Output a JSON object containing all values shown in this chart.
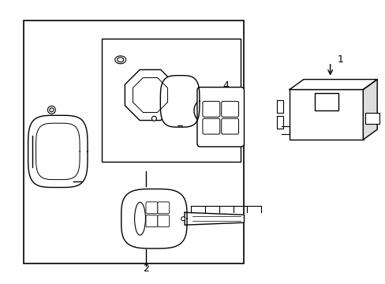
{
  "background": "#ffffff",
  "line_color": "#000000",
  "fig_width": 4.89,
  "fig_height": 3.6,
  "dpi": 100
}
